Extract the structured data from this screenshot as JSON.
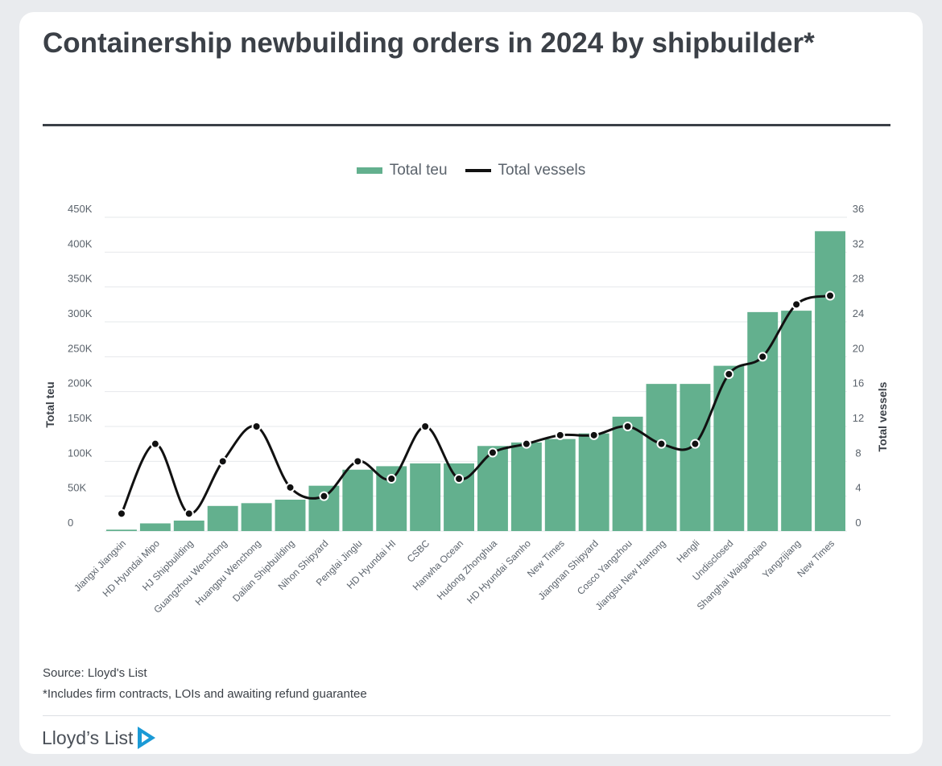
{
  "title": "Containership newbuilding orders in 2024 by shipbuilder*",
  "legend": {
    "bar_label": "Total teu",
    "line_label": "Total vessels"
  },
  "footer": {
    "source": "Source: Lloyd's List",
    "note": "*Includes firm contracts, LOIs and awaiting refund guarantee",
    "brand": "Lloyd’s List"
  },
  "colors": {
    "bar": "#63b08e",
    "line": "#111111",
    "text": "#3b4047",
    "grid": "#e6e8eb"
  },
  "chart_data": {
    "type": "bar",
    "title": "Containership newbuilding orders in 2024 by shipbuilder*",
    "categories": [
      "Jiangxi Jiangxin",
      "HD Hyundai Mipo",
      "HJ Shipbuilding",
      "Guangzhou Wenchong",
      "Huangpu Wenchong",
      "Dalian Shipbuilding",
      "Nihon Shipyard",
      "Penglai Jinglu",
      "HD Hyundai HI",
      "CSBC",
      "Hanwha Ocean",
      "Hudong Zhonghua",
      "HD Hyundai Samho",
      "New Times",
      "Jiangnan Shipyard",
      "Cosco Yangzhou",
      "Jiangsu New Hantong",
      "Hengli",
      "Undisclosed",
      "Shanghai Waigaoqiao",
      "Yangzijiang",
      "New Times"
    ],
    "series": [
      {
        "name": "Total teu",
        "type": "bar",
        "axis": "left",
        "values": [
          2000,
          11000,
          15000,
          36000,
          40000,
          45000,
          65000,
          88000,
          93000,
          97000,
          97000,
          122000,
          127000,
          132000,
          140000,
          164000,
          211000,
          211000,
          237000,
          314000,
          316000,
          430000
        ]
      },
      {
        "name": "Total vessels",
        "type": "line",
        "axis": "right",
        "values": [
          2,
          10,
          2,
          8,
          12,
          5,
          4,
          8,
          6,
          12,
          6,
          9,
          10,
          11,
          11,
          12,
          10,
          10,
          18,
          20,
          26,
          27
        ]
      }
    ],
    "ylabel": "Total teu",
    "y2label": "Total vessels",
    "ylim": [
      0,
      450000
    ],
    "y2lim": [
      0,
      36
    ],
    "yticks": [
      "0",
      "50K",
      "100K",
      "150K",
      "200K",
      "250K",
      "300K",
      "350K",
      "400K",
      "450K"
    ],
    "y2ticks": [
      "0",
      "4",
      "8",
      "12",
      "16",
      "20",
      "24",
      "28",
      "32",
      "36"
    ],
    "grid": true,
    "legend_position": "top-center"
  }
}
